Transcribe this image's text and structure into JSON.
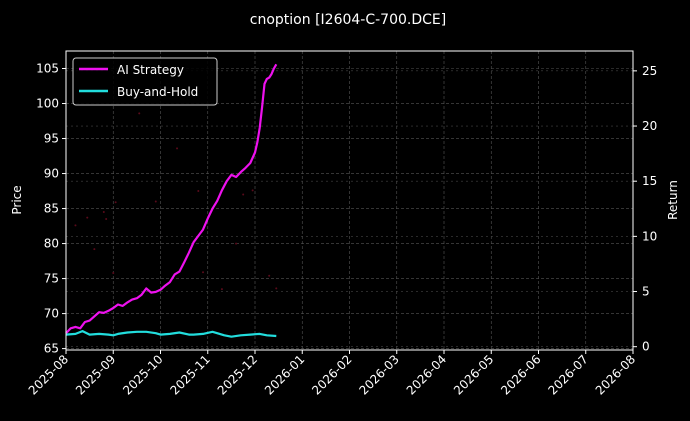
{
  "chart_data": {
    "type": "line",
    "title": "cnoption [I2604-C-700.DCE]",
    "xlabel": "",
    "ylabel": "Price",
    "ylabel_right": "Return",
    "x_ticks": [
      "2025-08",
      "2025-09",
      "2025-10",
      "2025-11",
      "2025-12",
      "2026-01",
      "2026-02",
      "2026-03",
      "2026-04",
      "2026-05",
      "2026-06",
      "2026-07",
      "2026-08"
    ],
    "y_ticks_left": [
      65,
      70,
      75,
      80,
      85,
      90,
      95,
      100,
      105
    ],
    "y_ticks_right": [
      0,
      5,
      10,
      15,
      20,
      25
    ],
    "ylim_left": [
      64.8,
      107.5
    ],
    "ylim_right": [
      -0.3,
      26.8
    ],
    "xlim": [
      "2025-08-01",
      "2026-08-01"
    ],
    "grid": true,
    "legend_position": "upper left",
    "series": [
      {
        "name": "AI Strategy",
        "axis": "left",
        "color": "#ee11ee",
        "x_month_offset": [
          0.0,
          0.1,
          0.2,
          0.3,
          0.4,
          0.5,
          0.6,
          0.7,
          0.8,
          0.9,
          1.0,
          1.1,
          1.2,
          1.3,
          1.4,
          1.5,
          1.6,
          1.7,
          1.8,
          1.9,
          2.0,
          2.1,
          2.2,
          2.3,
          2.4,
          2.5,
          2.6,
          2.7,
          2.8,
          2.9,
          3.0,
          3.1,
          3.2,
          3.3,
          3.4,
          3.5,
          3.6,
          3.7,
          3.8,
          3.9,
          4.0,
          4.05,
          4.1,
          4.15,
          4.2,
          4.25,
          4.3,
          4.35,
          4.4,
          4.45
        ],
        "values": [
          67.2,
          67.9,
          68.1,
          67.9,
          68.8,
          69.0,
          69.6,
          70.2,
          70.1,
          70.4,
          70.8,
          71.3,
          71.1,
          71.6,
          72.0,
          72.2,
          72.7,
          73.6,
          73.0,
          73.1,
          73.4,
          74.0,
          74.5,
          75.6,
          76.0,
          77.3,
          78.7,
          80.2,
          81.1,
          82.0,
          83.6,
          85.0,
          86.1,
          87.6,
          88.9,
          89.8,
          89.5,
          90.2,
          90.8,
          91.5,
          93.0,
          94.5,
          96.5,
          99.5,
          102.8,
          103.5,
          103.7,
          104.2,
          105.0,
          105.6
        ]
      },
      {
        "name": "Buy-and-Hold",
        "axis": "left",
        "color": "#22dddd",
        "x_month_offset": [
          0.0,
          0.2,
          0.35,
          0.5,
          0.7,
          0.9,
          1.0,
          1.1,
          1.3,
          1.5,
          1.7,
          1.9,
          2.0,
          2.2,
          2.4,
          2.6,
          2.7,
          2.9,
          3.1,
          3.2,
          3.35,
          3.5,
          3.7,
          3.9,
          4.1,
          4.25,
          4.45
        ],
        "values": [
          67.0,
          67.1,
          67.5,
          67.0,
          67.1,
          67.0,
          66.9,
          67.1,
          67.3,
          67.4,
          67.4,
          67.2,
          67.0,
          67.1,
          67.3,
          67.0,
          67.0,
          67.1,
          67.4,
          67.2,
          66.9,
          66.7,
          66.9,
          67.0,
          67.1,
          66.9,
          66.8
        ]
      }
    ],
    "scatter": {
      "name": "trade markers",
      "color": "#5a0a1a",
      "points": [
        {
          "x": 0.2,
          "y": 82.6
        },
        {
          "x": 0.45,
          "y": 83.7
        },
        {
          "x": 0.6,
          "y": 79.2
        },
        {
          "x": 0.8,
          "y": 84.5
        },
        {
          "x": 0.85,
          "y": 83.5
        },
        {
          "x": 1.0,
          "y": 75.8
        },
        {
          "x": 1.05,
          "y": 85.9
        },
        {
          "x": 1.55,
          "y": 98.6
        },
        {
          "x": 1.9,
          "y": 86.0
        },
        {
          "x": 2.35,
          "y": 93.6
        },
        {
          "x": 2.8,
          "y": 87.5
        },
        {
          "x": 2.9,
          "y": 75.9
        },
        {
          "x": 3.3,
          "y": 73.5
        },
        {
          "x": 3.6,
          "y": 80.0
        },
        {
          "x": 3.75,
          "y": 87.0
        },
        {
          "x": 3.95,
          "y": 87.6
        },
        {
          "x": 4.3,
          "y": 75.4
        },
        {
          "x": 4.45,
          "y": 73.6
        }
      ]
    }
  },
  "legend": {
    "items": [
      {
        "label": "AI Strategy",
        "color": "#ee11ee"
      },
      {
        "label": "Buy-and-Hold",
        "color": "#22dddd"
      }
    ]
  },
  "colors": {
    "background": "#000000",
    "axes": "#ffffff",
    "grid": "#555555",
    "text": "#ffffff"
  }
}
